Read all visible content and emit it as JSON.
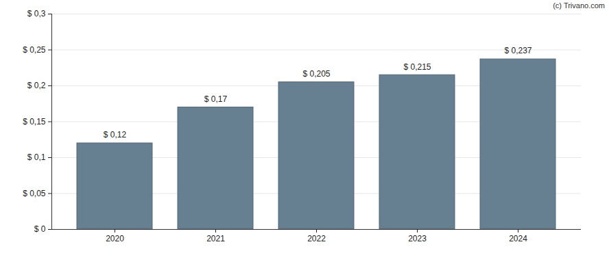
{
  "chart_data": {
    "type": "bar",
    "categories": [
      "2020",
      "2021",
      "2022",
      "2023",
      "2024"
    ],
    "values": [
      0.12,
      0.17,
      0.205,
      0.215,
      0.237
    ],
    "value_labels": [
      "$ 0,12",
      "$ 0,17",
      "$ 0,205",
      "$ 0,215",
      "$ 0,237"
    ],
    "data_labels": true,
    "color": "#667f91",
    "ylim": [
      0,
      0.3
    ],
    "yticks": [
      {
        "value": 0,
        "label": "$ 0"
      },
      {
        "value": 0.05,
        "label": "$ 0,05"
      },
      {
        "value": 0.1,
        "label": "$ 0,1"
      },
      {
        "value": 0.15,
        "label": "$ 0,15"
      },
      {
        "value": 0.2,
        "label": "$ 0,2"
      },
      {
        "value": 0.25,
        "label": "$ 0,25"
      },
      {
        "value": 0.3,
        "label": "$ 0,3"
      }
    ],
    "grid": true,
    "annotations": [
      "(c) Trivano.com"
    ]
  }
}
